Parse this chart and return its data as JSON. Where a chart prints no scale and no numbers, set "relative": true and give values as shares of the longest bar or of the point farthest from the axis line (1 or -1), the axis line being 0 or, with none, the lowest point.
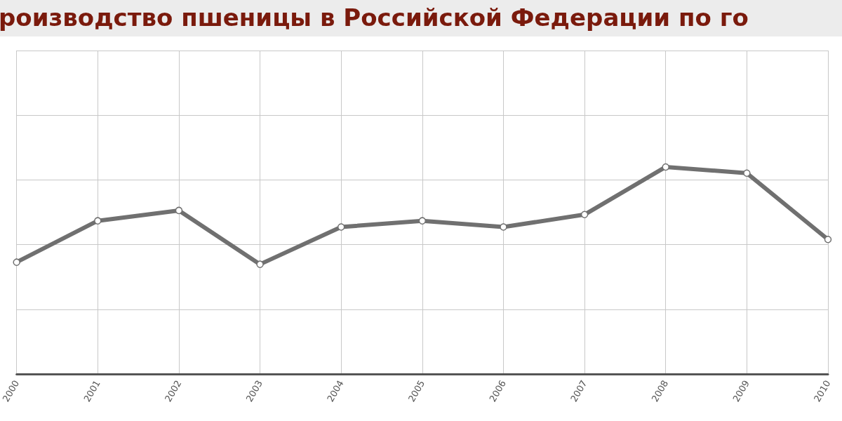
{
  "chart_data": {
    "type": "line",
    "title": "роизводство пшеницы в Российской Федерации по го",
    "relative": true,
    "categories": [
      "2000",
      "2001",
      "2002",
      "2003",
      "2004",
      "2005",
      "2006",
      "2007",
      "2008",
      "2009",
      "2010"
    ],
    "series": [
      {
        "color": "#707070",
        "values": [
          0.54,
          0.74,
          0.79,
          0.53,
          0.71,
          0.74,
          0.71,
          0.77,
          1,
          0.97,
          0.65
        ]
      }
    ],
    "grid": true,
    "marker": "circle",
    "line_style": "solid"
  }
}
